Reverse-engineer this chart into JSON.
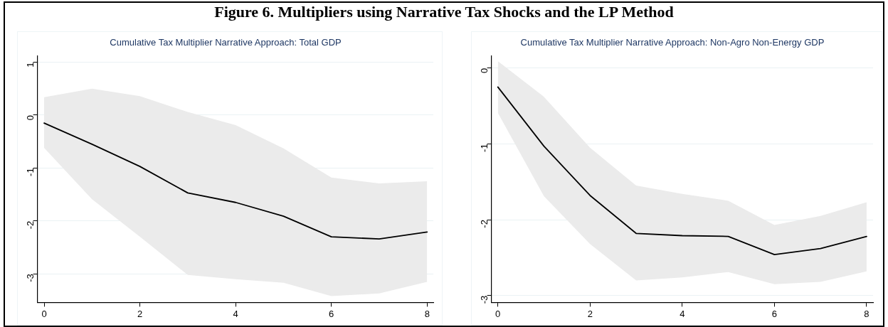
{
  "chart_data": [
    {
      "type": "line",
      "title": "Cumulative Tax Multiplier Narrative Approach: Total GDP",
      "annotations": [
        "Figure 6. Multipliers using Narrative Tax Shocks and the LP Method"
      ],
      "x": [
        0,
        1,
        2,
        3,
        4,
        5,
        6,
        7,
        8
      ],
      "series": [
        {
          "color": "#000000",
          "values": [
            -0.15,
            -0.55,
            -0.97,
            -1.47,
            -1.65,
            -1.91,
            -2.3,
            -2.34,
            -2.21
          ],
          "upper": [
            0.34,
            0.5,
            0.36,
            0.06,
            -0.19,
            -0.63,
            -1.18,
            -1.29,
            -1.25
          ],
          "lower": [
            -0.62,
            -1.59,
            -2.3,
            -3.02,
            -3.1,
            -3.17,
            -3.42,
            -3.37,
            -3.15
          ]
        }
      ],
      "xlim": [
        -0.14,
        8.13
      ],
      "xticks": [
        0,
        2,
        4,
        6,
        8
      ],
      "ylim": [
        -3.54,
        1.12
      ],
      "yticks": [
        -3,
        -2,
        -1,
        0,
        1
      ],
      "grid": "y",
      "marker": "none",
      "line_style": "solid"
    },
    {
      "type": "line",
      "title": "Cumulative Tax Multiplier Narrative Approach: Non-Agro Non-Energy GDP",
      "x": [
        0,
        1,
        2,
        3,
        4,
        5,
        6,
        7,
        8
      ],
      "series": [
        {
          "color": "#000000",
          "values": [
            -0.25,
            -1.03,
            -1.68,
            -2.18,
            -2.21,
            -2.22,
            -2.46,
            -2.38,
            -2.22
          ],
          "upper": [
            0.09,
            -0.38,
            -1.05,
            -1.55,
            -1.66,
            -1.75,
            -2.07,
            -1.95,
            -1.77
          ],
          "lower": [
            -0.59,
            -1.69,
            -2.32,
            -2.8,
            -2.76,
            -2.69,
            -2.85,
            -2.82,
            -2.68
          ]
        }
      ],
      "xlim": [
        -0.14,
        8.14
      ],
      "xticks": [
        0,
        2,
        4,
        6,
        8
      ],
      "ylim": [
        -3.09,
        0.16
      ],
      "yticks": [
        -3,
        -2,
        -1,
        0
      ],
      "grid": "y",
      "marker": "none",
      "line_style": "solid"
    }
  ]
}
